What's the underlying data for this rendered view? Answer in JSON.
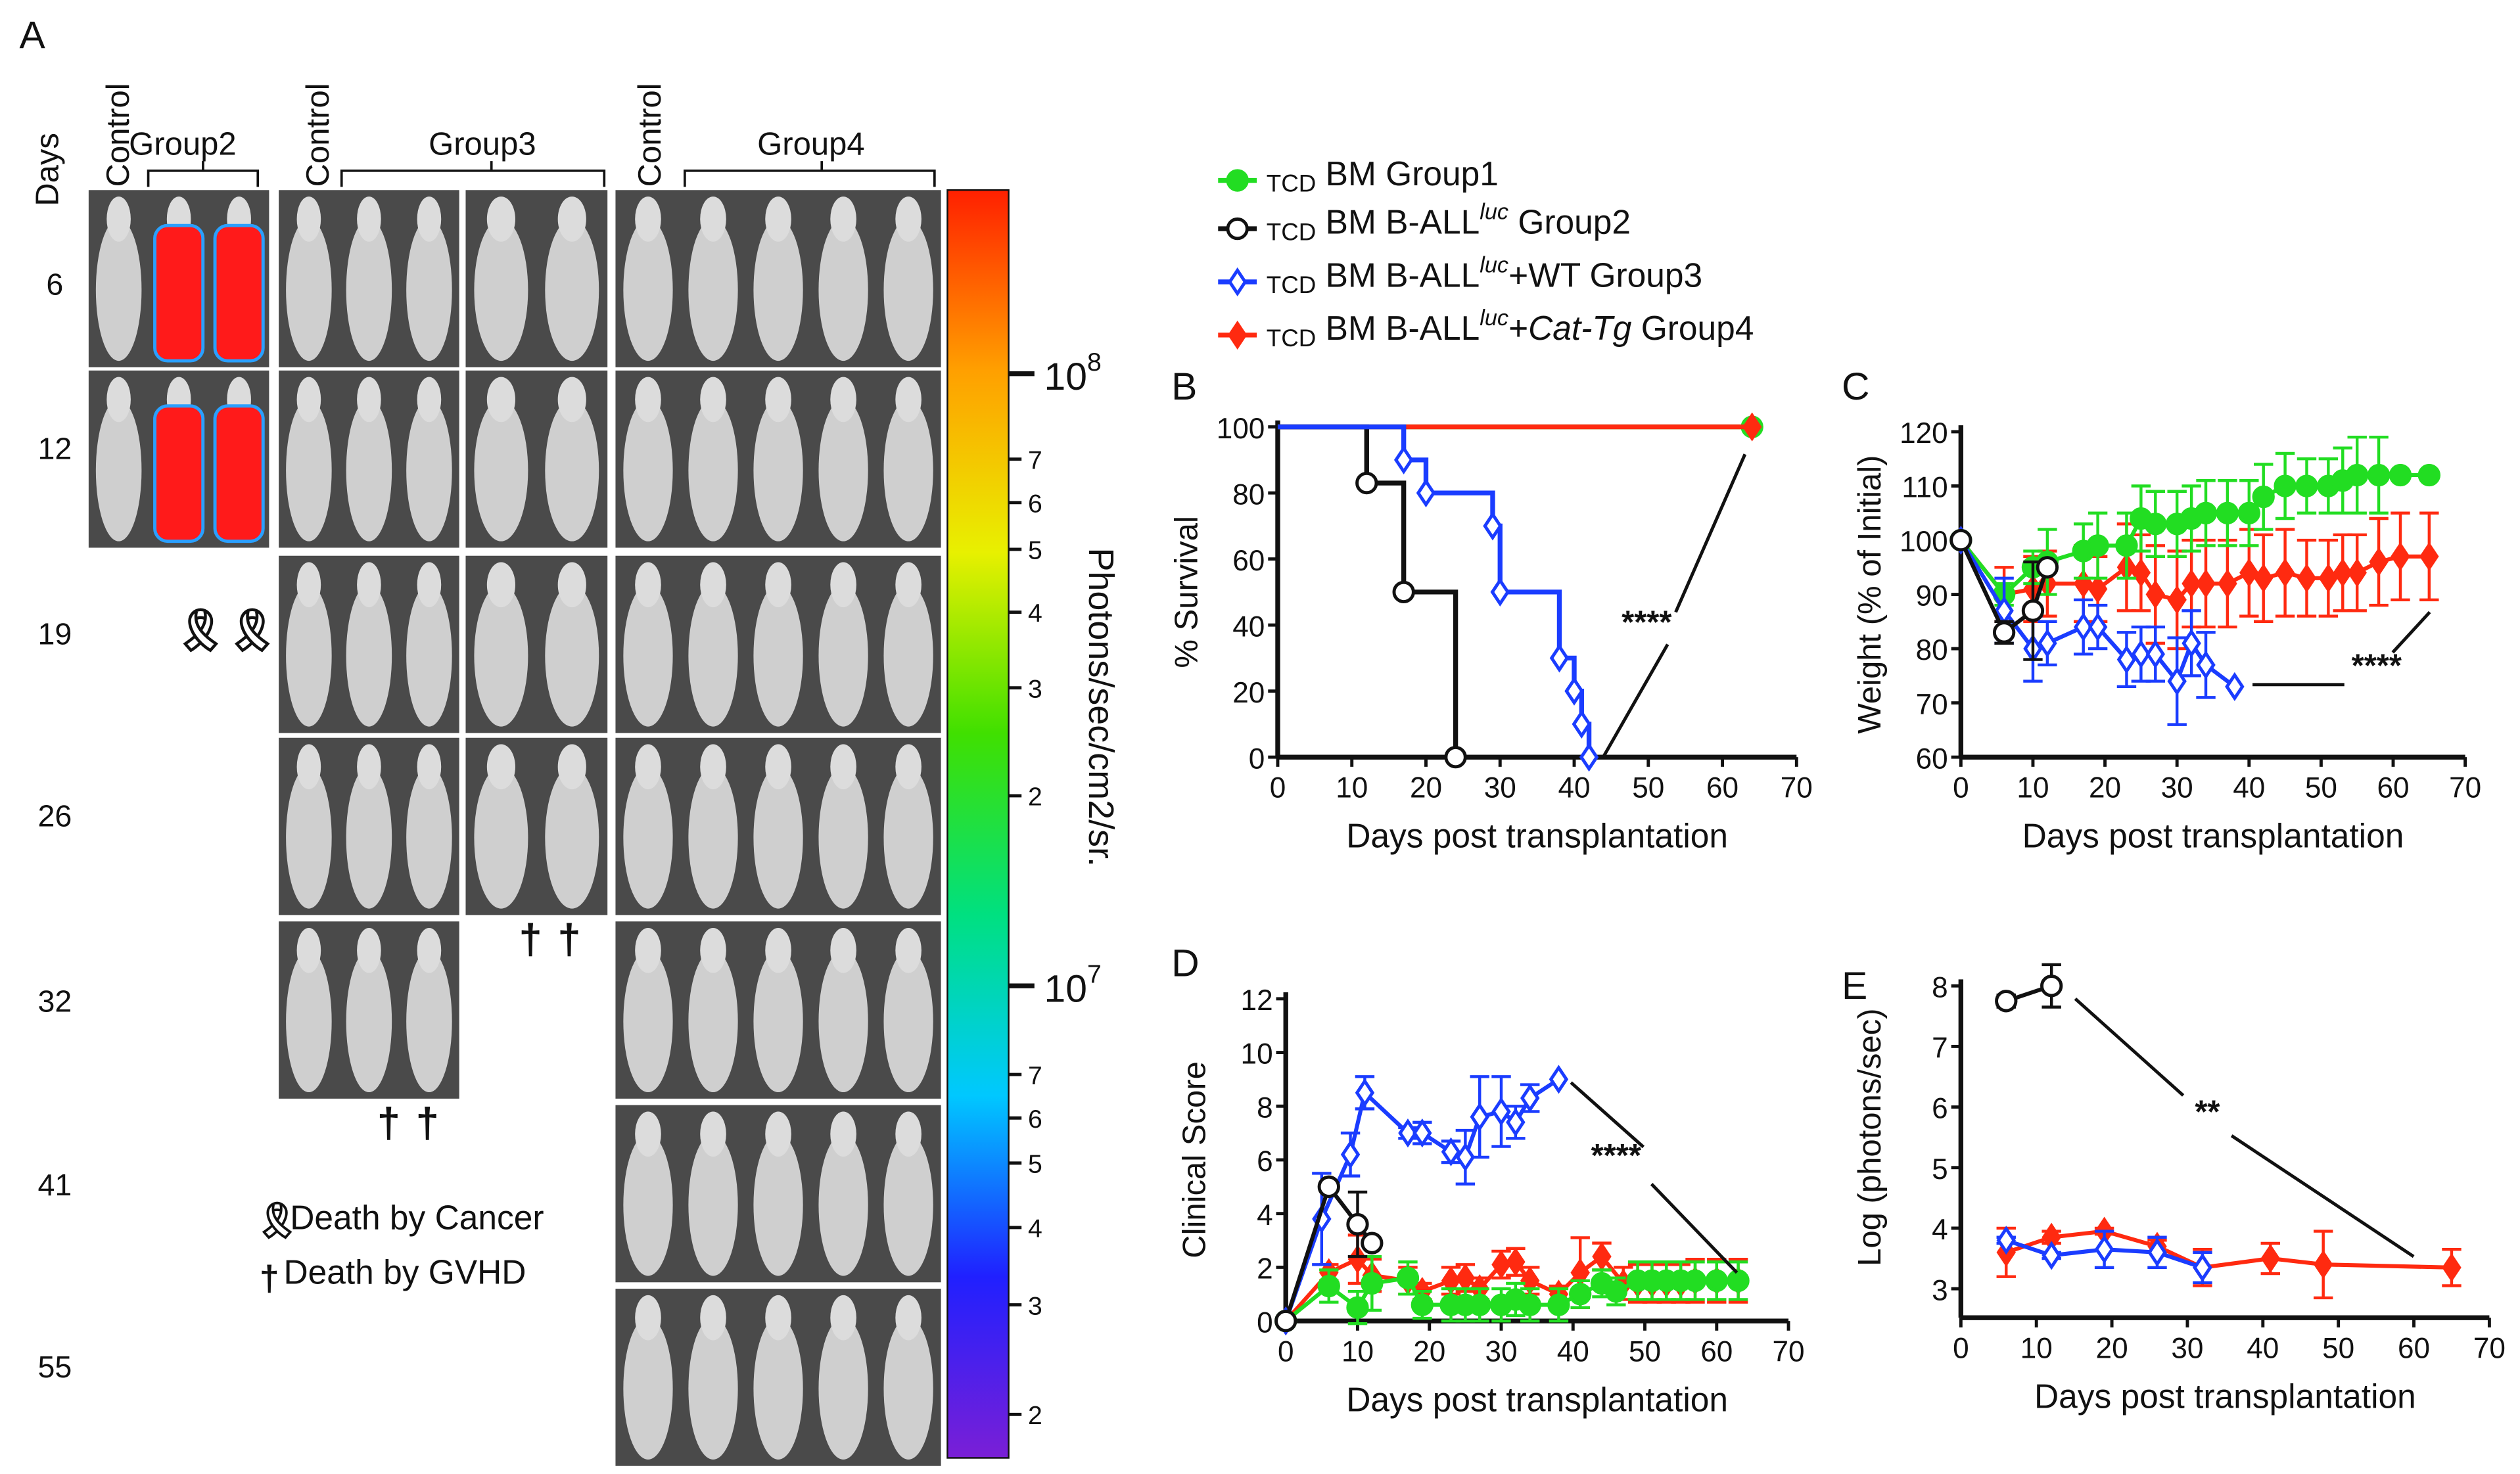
{
  "panel_a": {
    "label": "A",
    "days_label": "Days",
    "days": [
      "6",
      "12",
      "19",
      "26",
      "32",
      "41",
      "55"
    ],
    "headers": {
      "control": "Control",
      "group2": "Group2",
      "group3": "Group3",
      "group4": "Group4"
    },
    "alive_rows": {
      "group2": 2,
      "group3_left": 5,
      "group3_right": 4,
      "group4": 7
    },
    "legend": {
      "cancer": "Death by Cancer",
      "gvhd": "Death by GVHD"
    },
    "colorbar": {
      "title": "Photons/sec/cm2/sr.",
      "major": [
        "10",
        "10"
      ],
      "major_exp": [
        "8",
        "7"
      ],
      "minor_upper": [
        "7",
        "6",
        "5",
        "4",
        "3",
        "2"
      ],
      "minor_lower": [
        "7",
        "6",
        "5",
        "4",
        "3",
        "2"
      ],
      "colors": [
        "#7a1fd6",
        "#2020ff",
        "#00c8ff",
        "#00e080",
        "#40e000",
        "#e8f000",
        "#ffa000",
        "#ff2000"
      ]
    }
  },
  "legend": [
    {
      "sub": "TCD",
      "name": "BM Group1",
      "sup": "",
      "suffix": "",
      "italic": "",
      "tail": ""
    },
    {
      "sub": "TCD",
      "name": "BM B-ALL",
      "sup": "luc",
      "suffix": " Group2",
      "italic": "",
      "tail": ""
    },
    {
      "sub": "TCD",
      "name": "BM B-ALL",
      "sup": "luc",
      "suffix": "+WT  Group3",
      "italic": "",
      "tail": ""
    },
    {
      "sub": "TCD",
      "name": "BM B-ALL",
      "sup": "luc",
      "suffix": "+",
      "italic": "Cat-Tg",
      "tail": " Group4"
    }
  ],
  "colors": {
    "group1": "#22dd22",
    "group2": "#111111",
    "group3": "#1a3cff",
    "group4": "#ff2a10"
  },
  "chart_data": [
    {
      "id": "B",
      "label": "B",
      "type": "line",
      "xlabel": "Days post transplantation",
      "ylabel": "% Survival",
      "xlim": [
        0,
        70
      ],
      "ylim": [
        0,
        100
      ],
      "xticks": [
        "0",
        "10",
        "20",
        "30",
        "40",
        "50",
        "60",
        "70"
      ],
      "yticks": [
        "0",
        "20",
        "40",
        "60",
        "80",
        "100"
      ],
      "significance": "****",
      "series": [
        {
          "name": "Group1",
          "step": true,
          "x": [
            0,
            64
          ],
          "y": [
            100,
            100
          ]
        },
        {
          "name": "Group4",
          "step": true,
          "x": [
            0,
            64
          ],
          "y": [
            100,
            100
          ]
        },
        {
          "name": "Group2",
          "step": true,
          "x": [
            0,
            12,
            17,
            24
          ],
          "y": [
            100,
            83,
            50,
            0
          ]
        },
        {
          "name": "Group3",
          "step": true,
          "x": [
            0,
            17,
            20,
            29,
            30,
            38,
            40,
            41,
            42
          ],
          "y": [
            100,
            90,
            80,
            70,
            50,
            30,
            20,
            10,
            0
          ]
        }
      ]
    },
    {
      "id": "C",
      "label": "C",
      "type": "line",
      "xlabel": "Days post transplantation",
      "ylabel": "Weight (% of Initial)",
      "xlim": [
        0,
        70
      ],
      "ylim": [
        60,
        120
      ],
      "xticks": [
        "0",
        "10",
        "20",
        "30",
        "40",
        "50",
        "60",
        "70"
      ],
      "yticks": [
        "60",
        "70",
        "80",
        "90",
        "100",
        "110",
        "120"
      ],
      "significance": "****",
      "series": [
        {
          "name": "Group4",
          "x": [
            0,
            6,
            10,
            12,
            17,
            19,
            23,
            25,
            27,
            30,
            32,
            34,
            37,
            40,
            42,
            45,
            48,
            51,
            53,
            55,
            58,
            61,
            65
          ],
          "y": [
            100,
            90,
            91,
            92,
            92,
            91,
            95,
            94,
            90,
            89,
            92,
            92,
            92,
            94,
            93,
            94,
            93,
            93,
            94,
            94,
            96,
            97,
            97
          ],
          "err": [
            0,
            5,
            6,
            6,
            7,
            6,
            8,
            7,
            9,
            9,
            8,
            8,
            8,
            8,
            8,
            8,
            7,
            7,
            7,
            7,
            8,
            8,
            8
          ]
        },
        {
          "name": "Group1",
          "x": [
            0,
            6,
            10,
            12,
            17,
            19,
            23,
            25,
            27,
            30,
            32,
            34,
            37,
            40,
            42,
            45,
            48,
            51,
            53,
            55,
            58,
            61,
            65
          ],
          "y": [
            100,
            90,
            95,
            96,
            98,
            99,
            99,
            104,
            103,
            103,
            104,
            105,
            105,
            105,
            108,
            110,
            110,
            110,
            111,
            112,
            112,
            112,
            112
          ],
          "err": [
            0,
            2,
            3,
            6,
            5,
            6,
            6,
            6,
            6,
            6,
            6,
            6,
            6,
            6,
            6,
            6,
            5,
            5,
            6,
            7,
            7,
            0,
            0
          ]
        },
        {
          "name": "Group3",
          "x": [
            0,
            6,
            10,
            12,
            17,
            19,
            23,
            25,
            27,
            30,
            32,
            34,
            38
          ],
          "y": [
            100,
            87,
            80,
            81,
            84,
            84,
            78,
            79,
            79,
            74,
            81,
            77,
            73
          ],
          "err": [
            0,
            6,
            6,
            4,
            5,
            4,
            5,
            5,
            5,
            8,
            6,
            6,
            0
          ]
        },
        {
          "name": "Group2",
          "x": [
            0,
            6,
            10,
            12
          ],
          "y": [
            100,
            83,
            87,
            95
          ],
          "err": [
            0,
            2,
            9,
            0
          ]
        }
      ]
    },
    {
      "id": "D",
      "label": "D",
      "type": "line",
      "xlabel": "Days post transplantation",
      "ylabel": "Clinical Score",
      "xlim": [
        0,
        70
      ],
      "ylim": [
        0,
        12
      ],
      "xticks": [
        "0",
        "10",
        "20",
        "30",
        "40",
        "50",
        "60",
        "70"
      ],
      "yticks": [
        "0",
        "2",
        "4",
        "6",
        "8",
        "10",
        "12"
      ],
      "significance": "****",
      "series": [
        {
          "name": "Group4",
          "x": [
            0,
            6,
            10,
            12,
            17,
            19,
            23,
            25,
            27,
            30,
            32,
            34,
            38,
            41,
            44,
            47,
            49,
            51,
            53,
            55,
            57,
            60,
            63
          ],
          "y": [
            0,
            1.8,
            2.3,
            1.7,
            1.5,
            1.1,
            1.5,
            1.6,
            1.2,
            2.1,
            2.2,
            1.5,
            1.0,
            1.8,
            2.4,
            1.4,
            1.4,
            1.4,
            1.4,
            1.4,
            1.5,
            1.5,
            1.5
          ],
          "err": [
            0,
            0.3,
            0.9,
            0.6,
            0.5,
            0.3,
            0.5,
            0.5,
            0.4,
            0.5,
            0.5,
            0.5,
            0.3,
            1.3,
            0.5,
            0.6,
            0.7,
            0.7,
            0.7,
            0.7,
            0.8,
            0.8,
            0.8
          ]
        },
        {
          "name": "Group1",
          "x": [
            0,
            6,
            10,
            12,
            17,
            19,
            23,
            25,
            27,
            30,
            32,
            34,
            38,
            41,
            44,
            46,
            49,
            51,
            53,
            55,
            57,
            60,
            63
          ],
          "y": [
            0,
            1.3,
            0.5,
            1.4,
            1.6,
            0.6,
            0.6,
            0.6,
            0.6,
            0.6,
            0.8,
            0.6,
            0.6,
            1.0,
            1.4,
            1.1,
            1.5,
            1.5,
            1.5,
            1.5,
            1.5,
            1.5,
            1.5
          ],
          "err": [
            0,
            0.6,
            0.6,
            1.0,
            0.6,
            0.5,
            0.6,
            0.6,
            0.6,
            0.6,
            0.6,
            0.6,
            0.6,
            0.5,
            0.5,
            0.5,
            0.7,
            0.7,
            0.7,
            0.7,
            0.7,
            0.7,
            0.7
          ]
        },
        {
          "name": "Group3",
          "x": [
            0,
            5,
            9,
            11,
            17,
            19,
            23,
            25,
            27,
            30,
            32,
            34,
            38
          ],
          "y": [
            0,
            3.8,
            6.2,
            8.5,
            7.0,
            7.0,
            6.3,
            6.1,
            7.6,
            7.8,
            7.4,
            8.3,
            9.0
          ],
          "err": [
            0,
            1.7,
            0.8,
            0.6,
            0.2,
            0.4,
            0.4,
            1.0,
            1.5,
            1.3,
            0.6,
            0.5,
            0
          ]
        },
        {
          "name": "Group2",
          "x": [
            0,
            6,
            10,
            12
          ],
          "y": [
            0,
            5,
            3.6,
            2.9
          ],
          "err": [
            0,
            0,
            1.2,
            0
          ]
        }
      ]
    },
    {
      "id": "E",
      "label": "E",
      "type": "line",
      "xlabel": "Days post transplantation",
      "ylabel": "Log (photons/sec)",
      "xlim": [
        0,
        70
      ],
      "ylim": [
        3,
        8
      ],
      "xticks": [
        "0",
        "10",
        "20",
        "30",
        "40",
        "50",
        "60",
        "70"
      ],
      "yticks": [
        "3",
        "4",
        "5",
        "6",
        "7",
        "8"
      ],
      "significance": "**",
      "series": [
        {
          "name": "Group4",
          "x": [
            6,
            12,
            19,
            26,
            32,
            41,
            48,
            65
          ],
          "y": [
            3.6,
            3.85,
            3.95,
            3.7,
            3.35,
            3.5,
            3.4,
            3.35
          ],
          "err": [
            0.4,
            0.1,
            0.05,
            0.1,
            0.3,
            0.25,
            0.55,
            0.3
          ]
        },
        {
          "name": "Group3",
          "x": [
            6,
            12,
            19,
            26,
            32
          ],
          "y": [
            3.8,
            3.55,
            3.65,
            3.6,
            3.35
          ],
          "err": [
            0.05,
            0.05,
            0.3,
            0.25,
            0.25
          ]
        },
        {
          "name": "Group2",
          "x": [
            6,
            12
          ],
          "y": [
            7.75,
            8.0
          ],
          "err": [
            0.1,
            0.35
          ]
        }
      ]
    }
  ]
}
